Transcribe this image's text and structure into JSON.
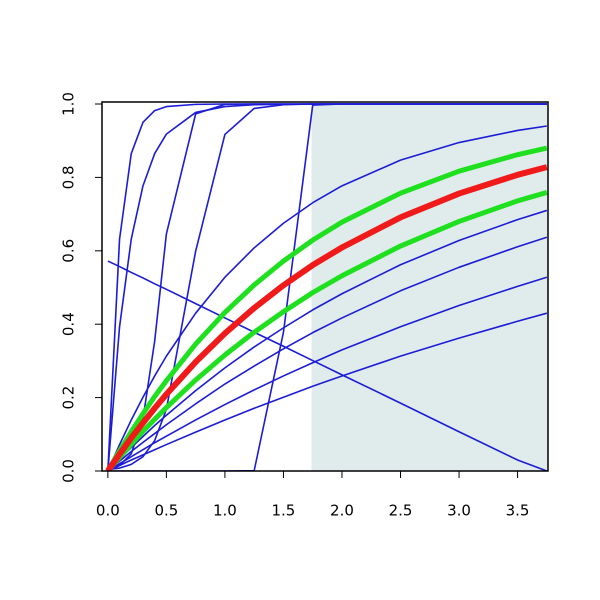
{
  "chart_data": {
    "type": "line",
    "x": [
      0,
      0.1,
      0.2,
      0.3,
      0.4,
      0.5,
      0.75,
      1,
      1.25,
      1.5,
      1.75,
      2,
      2.5,
      3,
      3.5,
      3.75
    ],
    "xlim": [
      -0.05,
      3.76
    ],
    "ylim": [
      0,
      1
    ],
    "xticks": [
      {
        "value": 0,
        "label": "0.0"
      },
      {
        "value": 0.5,
        "label": "0.5"
      },
      {
        "value": 1,
        "label": "1.0"
      },
      {
        "value": 1.5,
        "label": "1.5"
      },
      {
        "value": 2,
        "label": "2.0"
      },
      {
        "value": 2.5,
        "label": "2.5"
      },
      {
        "value": 3,
        "label": "3.0"
      },
      {
        "value": 3.5,
        "label": "3.5"
      }
    ],
    "yticks": [
      {
        "value": 0,
        "label": "0.0"
      },
      {
        "value": 0.2,
        "label": "0.2"
      },
      {
        "value": 0.4,
        "label": "0.4"
      },
      {
        "value": 0.6,
        "label": "0.6"
      },
      {
        "value": 0.8,
        "label": "0.8"
      },
      {
        "value": 1,
        "label": "1.0"
      }
    ],
    "shaded_region": [
      1.74,
      3.76
    ],
    "shade_color": "#e0ecec",
    "series": [
      {
        "color": "#1c1cd6",
        "width": 1.6,
        "values": [
          0,
          0.02,
          0.039,
          0.058,
          0.077,
          0.095,
          0.139,
          0.181,
          0.221,
          0.259,
          0.295,
          0.33,
          0.393,
          0.451,
          0.503,
          0.528
        ]
      },
      {
        "color": "#1c1cd6",
        "width": 1.6,
        "values": [
          0,
          0.027,
          0.053,
          0.078,
          0.102,
          0.126,
          0.183,
          0.237,
          0.286,
          0.333,
          0.377,
          0.417,
          0.491,
          0.555,
          0.611,
          0.637
        ]
      },
      {
        "color": "#1c1cd6",
        "width": 1.6,
        "values": [
          0,
          0.032,
          0.064,
          0.094,
          0.124,
          0.152,
          0.219,
          0.281,
          0.338,
          0.39,
          0.439,
          0.483,
          0.562,
          0.628,
          0.685,
          0.71
        ]
      },
      {
        "color": "#1c1cd6",
        "width": 1.6,
        "values": [
          0,
          0.072,
          0.139,
          0.201,
          0.259,
          0.313,
          0.43,
          0.528,
          0.608,
          0.675,
          0.731,
          0.777,
          0.847,
          0.895,
          0.928,
          0.94
        ]
      },
      {
        "color": "#1c1cd6",
        "width": 1.6,
        "values": [
          0,
          0.015,
          0.03,
          0.044,
          0.058,
          0.072,
          0.106,
          0.139,
          0.171,
          0.201,
          0.231,
          0.259,
          0.313,
          0.362,
          0.408,
          0.43
        ]
      },
      {
        "color": "#1c1cd6",
        "width": 1.6,
        "values": [
          0,
          0.632,
          0.865,
          0.95,
          0.982,
          0.993,
          0.999,
          1,
          1,
          1,
          1,
          1,
          1,
          1,
          1,
          1
        ]
      },
      {
        "color": "#1c1cd6",
        "width": 1.6,
        "values": [
          0,
          0.393,
          0.632,
          0.777,
          0.865,
          0.918,
          0.977,
          0.993,
          0.998,
          0.999,
          1,
          1,
          1,
          1,
          1,
          1
        ]
      },
      {
        "color": "#1c1cd6",
        "width": 1.6,
        "values": [
          0.004,
          0.015,
          0.047,
          0.142,
          0.354,
          0.646,
          0.973,
          0.999,
          1,
          1,
          1,
          1,
          1,
          1,
          1,
          1
        ]
      },
      {
        "color": "#1c1cd6",
        "width": 1.6,
        "values": [
          0.004,
          0.008,
          0.018,
          0.039,
          0.083,
          0.168,
          0.599,
          0.917,
          0.988,
          0.998,
          1,
          1,
          1,
          1,
          1,
          1
        ]
      },
      {
        "color": "#1c1cd6",
        "width": 1.6,
        "values": [
          0,
          0,
          0,
          0,
          0,
          0,
          0,
          0,
          0.001,
          0.378,
          0.997,
          1,
          1,
          1,
          1,
          1
        ]
      },
      {
        "color": "#1c1cd6",
        "width": 1.6,
        "values": [
          0.572,
          0.557,
          0.541,
          0.526,
          0.51,
          0.495,
          0.456,
          0.417,
          0.378,
          0.34,
          0.301,
          0.262,
          0.185,
          0.107,
          0.03,
          0.0
        ]
      },
      {
        "color": "#1fe01f",
        "width": 5,
        "values": [
          0,
          0.055,
          0.107,
          0.156,
          0.203,
          0.246,
          0.346,
          0.432,
          0.507,
          0.572,
          0.629,
          0.678,
          0.757,
          0.817,
          0.862,
          0.88
        ]
      },
      {
        "color": "#1fe01f",
        "width": 5,
        "values": [
          0,
          0.037,
          0.073,
          0.108,
          0.141,
          0.173,
          0.248,
          0.316,
          0.378,
          0.434,
          0.486,
          0.532,
          0.613,
          0.68,
          0.736,
          0.759
        ]
      },
      {
        "color": "#f01a1a",
        "width": 6,
        "values": [
          0,
          0.046,
          0.09,
          0.131,
          0.171,
          0.209,
          0.297,
          0.375,
          0.444,
          0.506,
          0.561,
          0.609,
          0.691,
          0.756,
          0.807,
          0.828
        ]
      }
    ]
  }
}
